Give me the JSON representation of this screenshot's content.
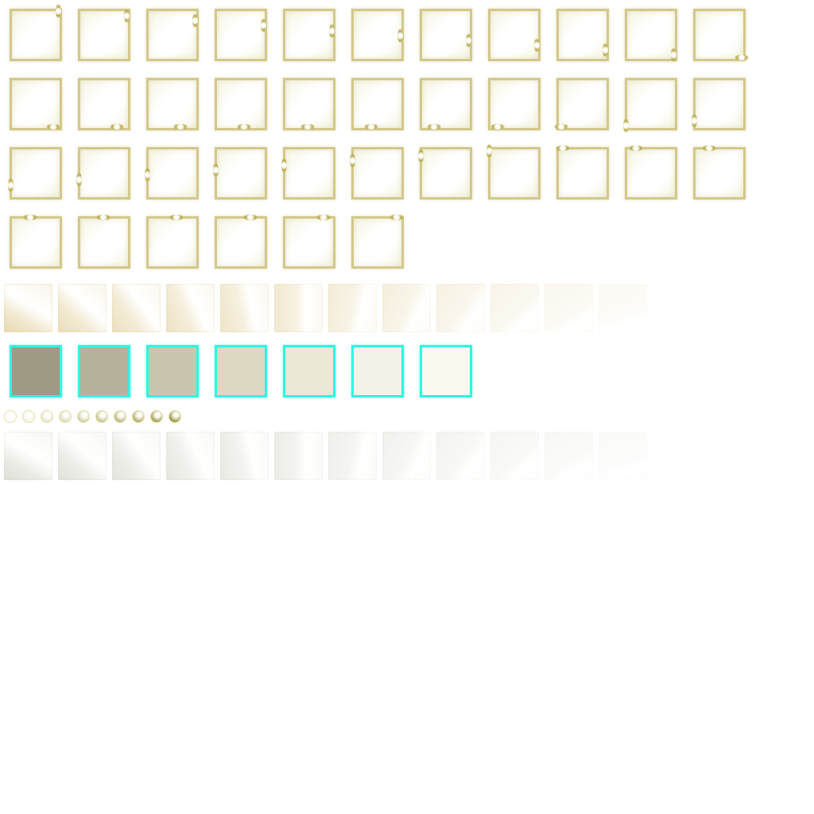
{
  "sprite_sheet": {
    "glint_frames": {
      "rows": [
        11,
        11,
        11,
        6
      ],
      "frame_color": "#d2c88c",
      "glint_color": "#b8ac50"
    },
    "gold_swirl_tiles": {
      "count": 12,
      "color": "#e2d09c"
    },
    "selection_boxes": {
      "border_color": "#2ff5e0",
      "fills": [
        "#9e9a84",
        "#b6b29a",
        "#cac6ae",
        "#dcd8c2",
        "#ebe8d8",
        "#f4f2e6",
        "#faf9f0"
      ]
    },
    "progress_orbs": {
      "count": 10,
      "color": "#9a9440"
    },
    "gray_swirl_tiles": {
      "count": 12,
      "color": "#e0e0d8"
    }
  }
}
